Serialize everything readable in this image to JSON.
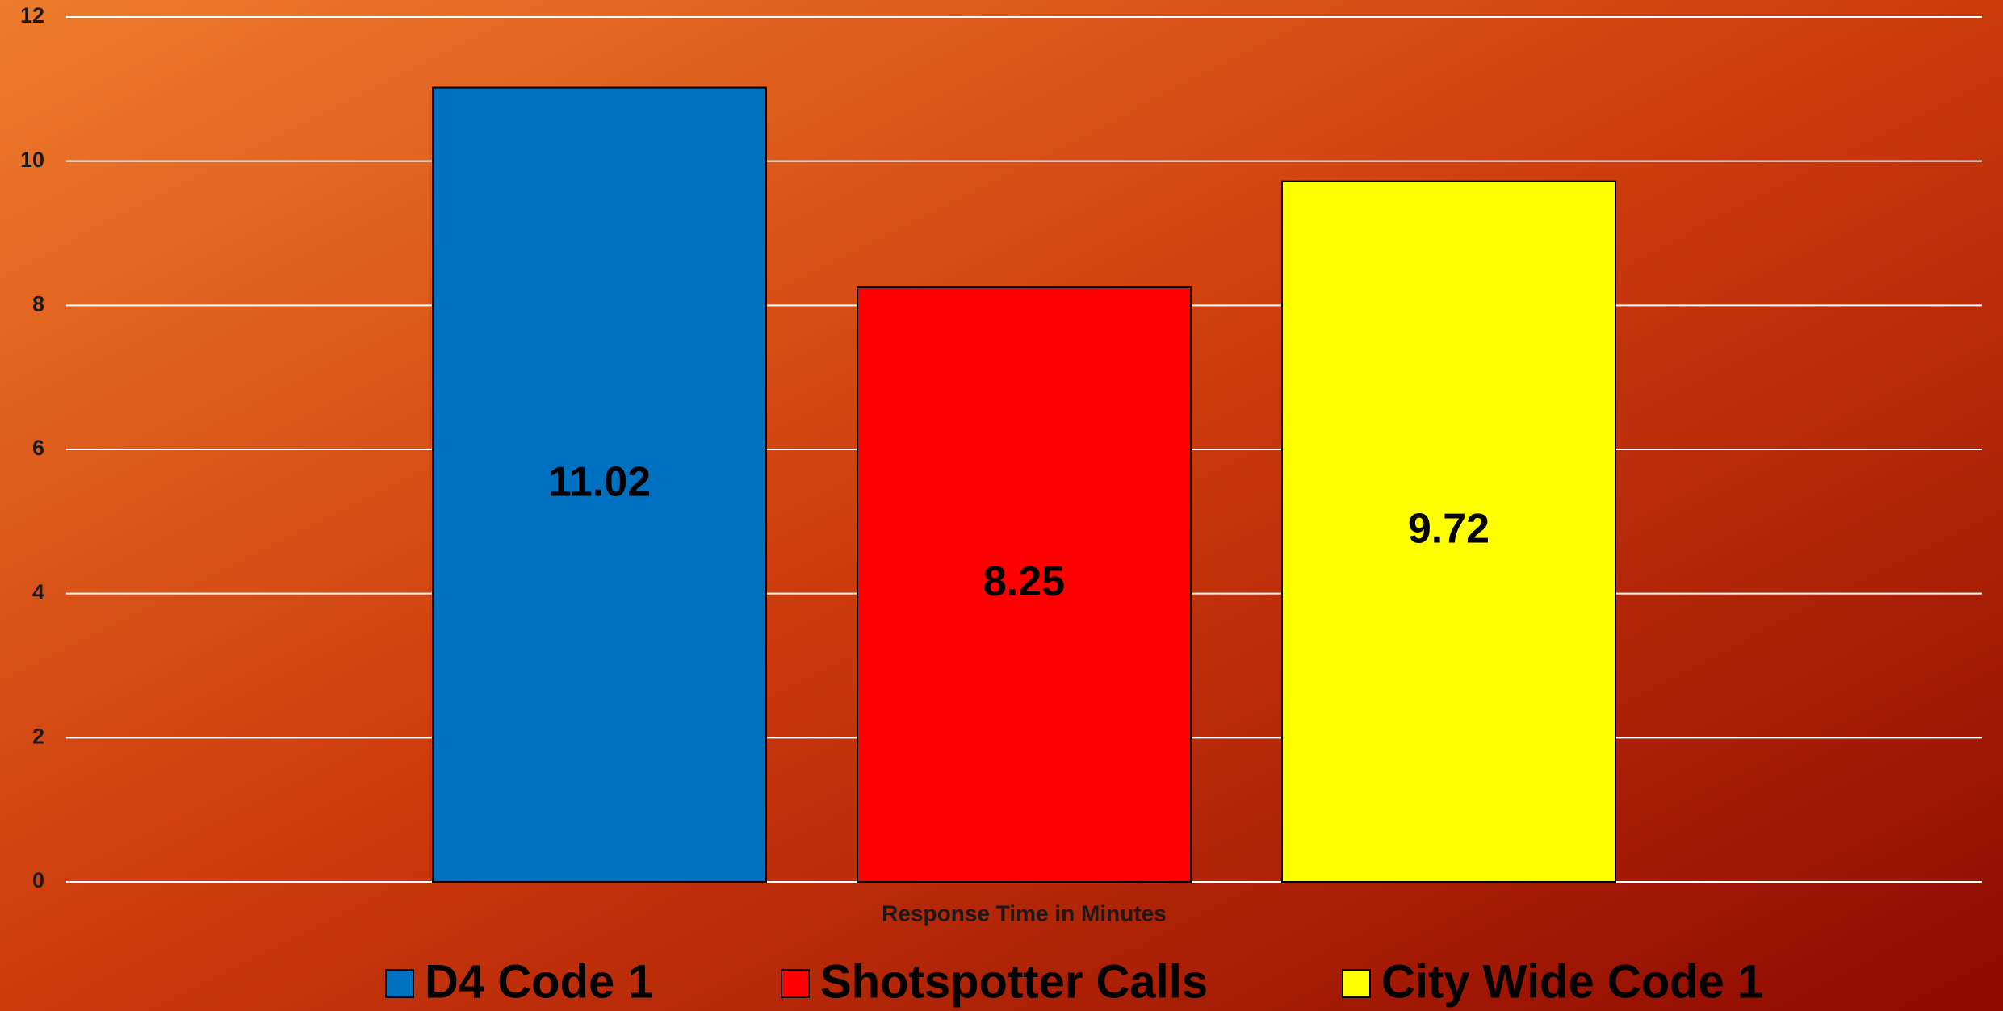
{
  "chart_data": {
    "type": "bar",
    "categories": [
      "Response Time in Minutes"
    ],
    "series": [
      {
        "name": "D4 Code 1",
        "color": "#0070c0",
        "values": [
          11.02
        ]
      },
      {
        "name": "Shotspotter Calls",
        "color": "#ff0000",
        "values": [
          8.25
        ]
      },
      {
        "name": "City Wide Code 1",
        "color": "#ffff00",
        "values": [
          9.72
        ]
      }
    ],
    "ylim": [
      0,
      12
    ],
    "yticks": [
      0,
      2,
      4,
      6,
      8,
      10,
      12
    ],
    "grid": true,
    "legend": "bottom"
  }
}
